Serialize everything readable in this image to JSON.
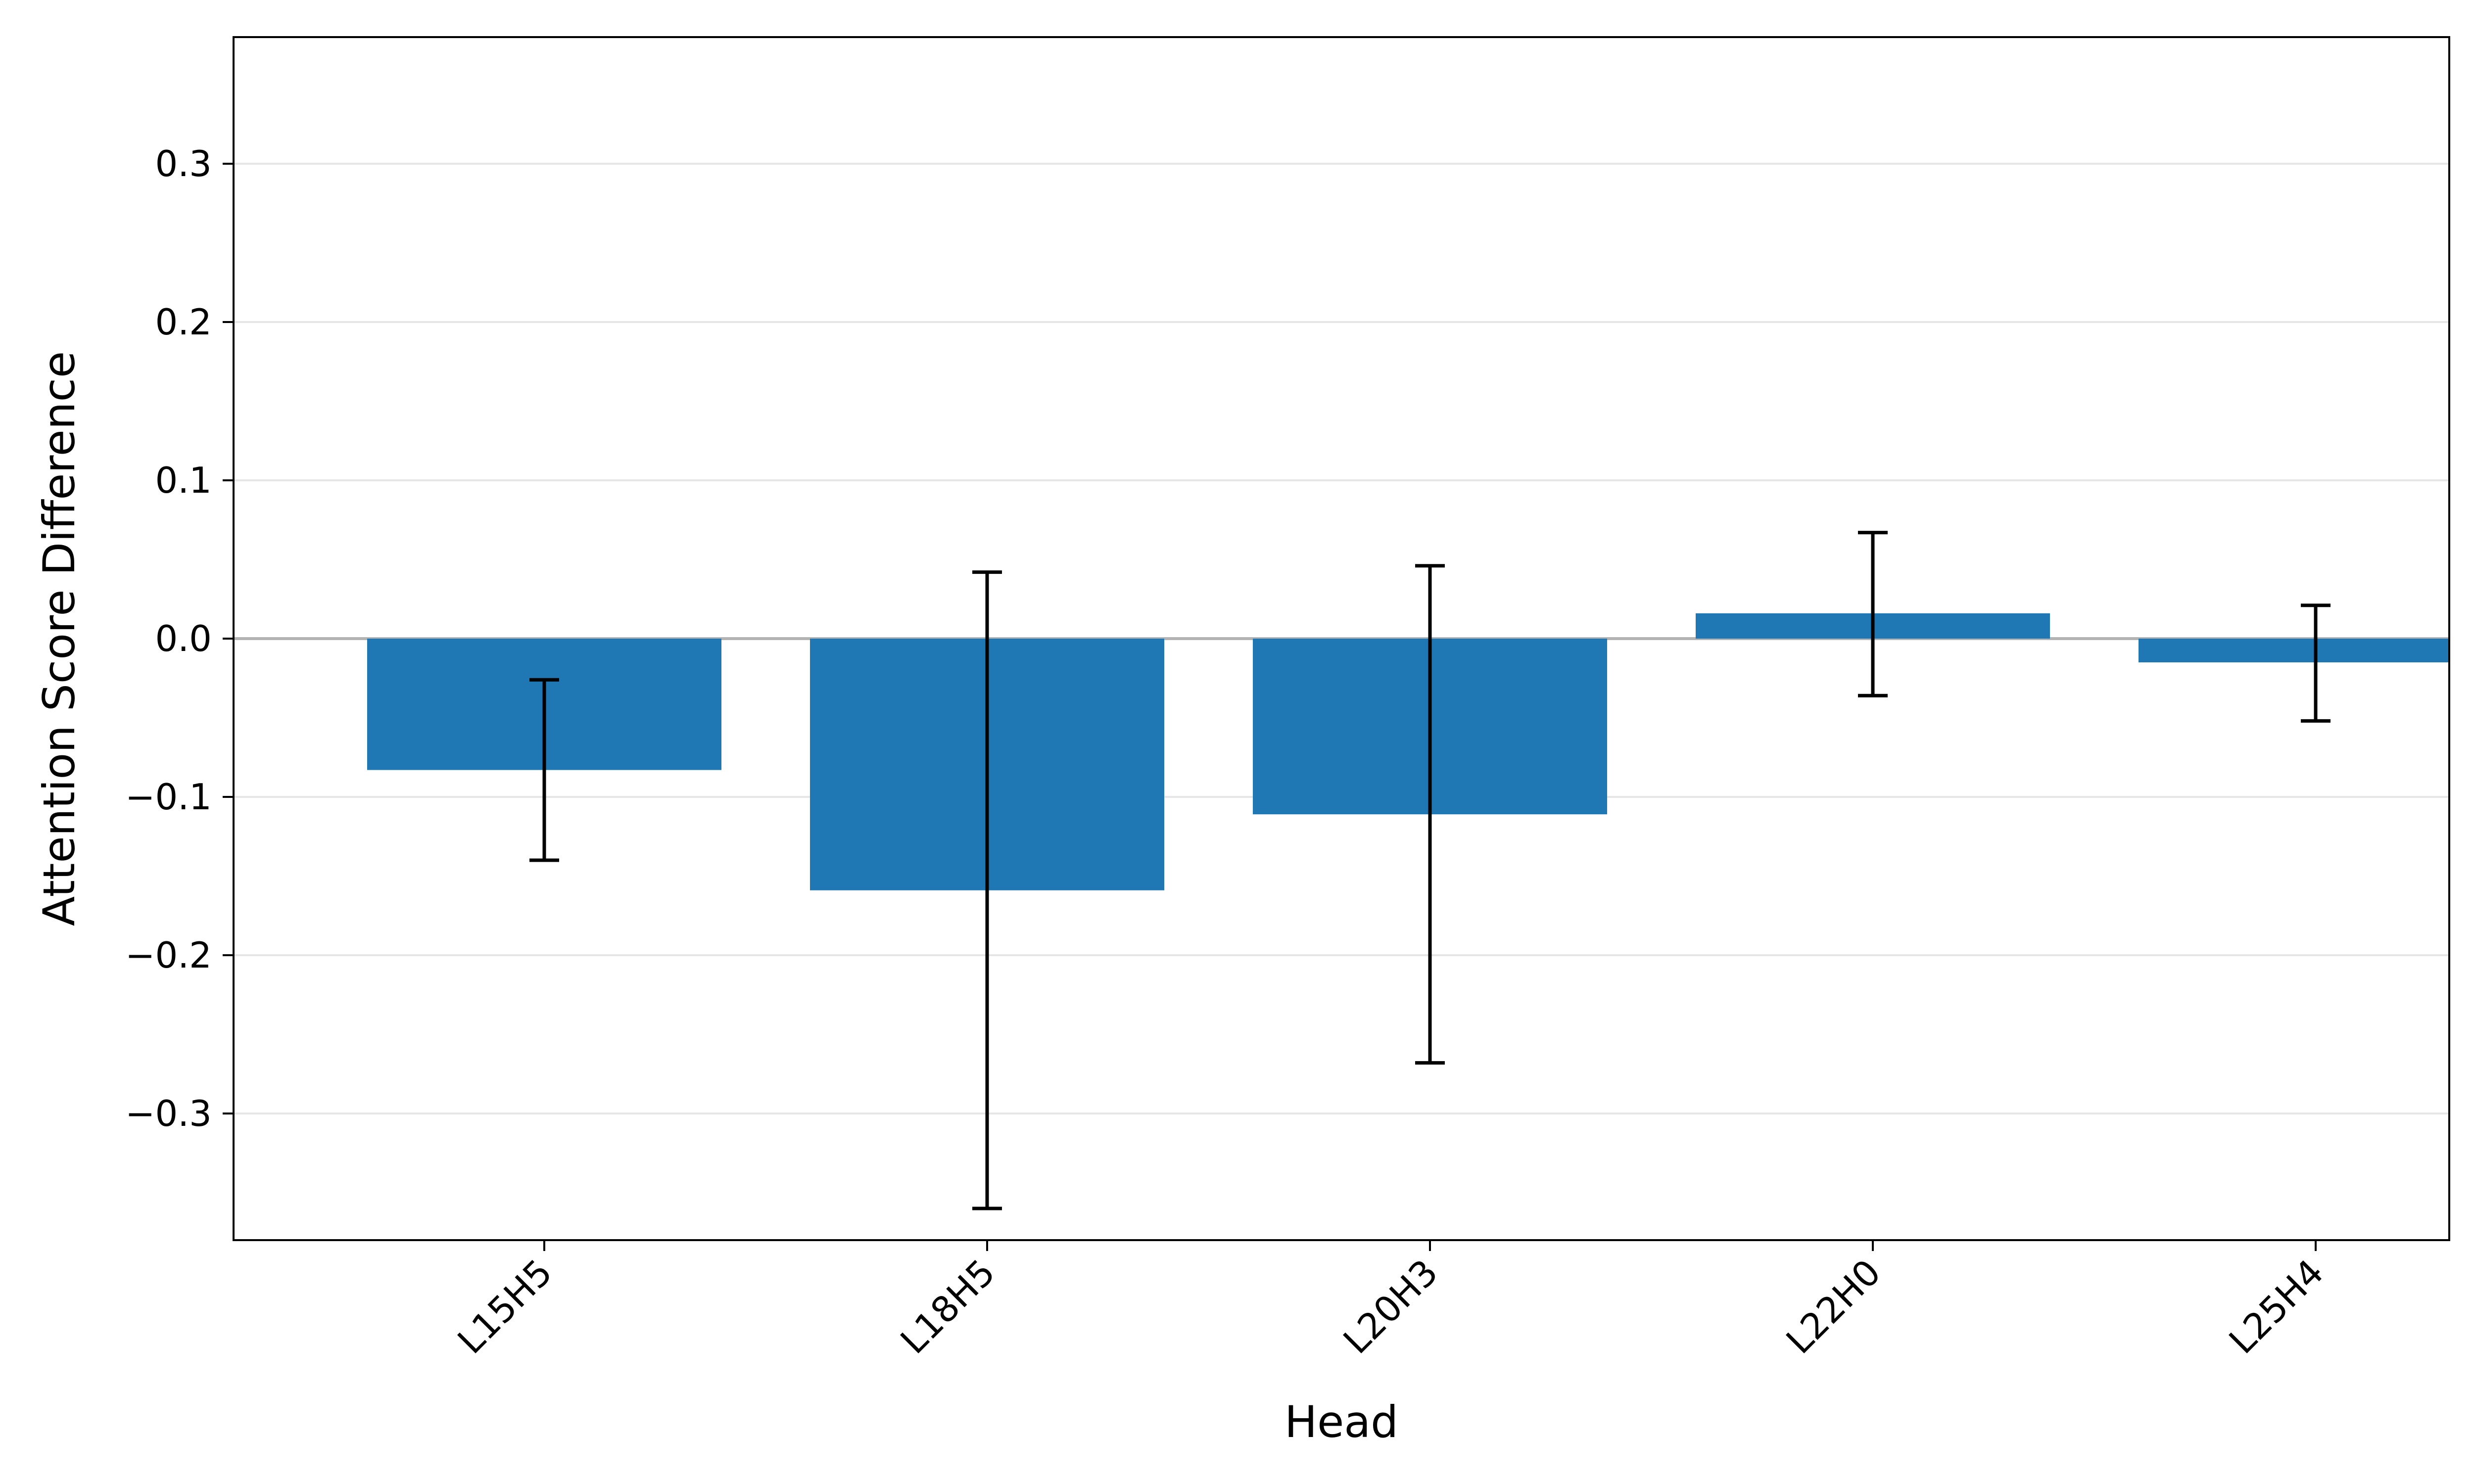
{
  "chart_data": {
    "type": "bar",
    "categories": [
      "L15H5",
      "L18H5",
      "L20H3",
      "L22H0",
      "L25H4"
    ],
    "values": [
      -0.083,
      -0.159,
      -0.111,
      0.016,
      -0.015
    ],
    "error_low": [
      -0.14,
      -0.36,
      -0.268,
      -0.036,
      -0.052
    ],
    "error_high": [
      -0.026,
      0.042,
      0.046,
      0.067,
      0.021
    ],
    "title": "",
    "xlabel": "Head",
    "ylabel": "Attention Score Difference",
    "ylim": [
      -0.38,
      0.38
    ],
    "yticks": [
      -0.3,
      -0.2,
      -0.1,
      0.0,
      0.1,
      0.2,
      0.3
    ],
    "ytick_labels": [
      "−0.3",
      "−0.2",
      "−0.1",
      "0.0",
      "0.1",
      "0.2",
      "0.3"
    ],
    "grid": "horizontal",
    "zero_line": true,
    "colors": {
      "bar": "#1f77b4",
      "error_bar": "#000000",
      "grid": "#e6e6e6",
      "zero_line": "#b3b3b3",
      "axes": "#000000"
    }
  }
}
